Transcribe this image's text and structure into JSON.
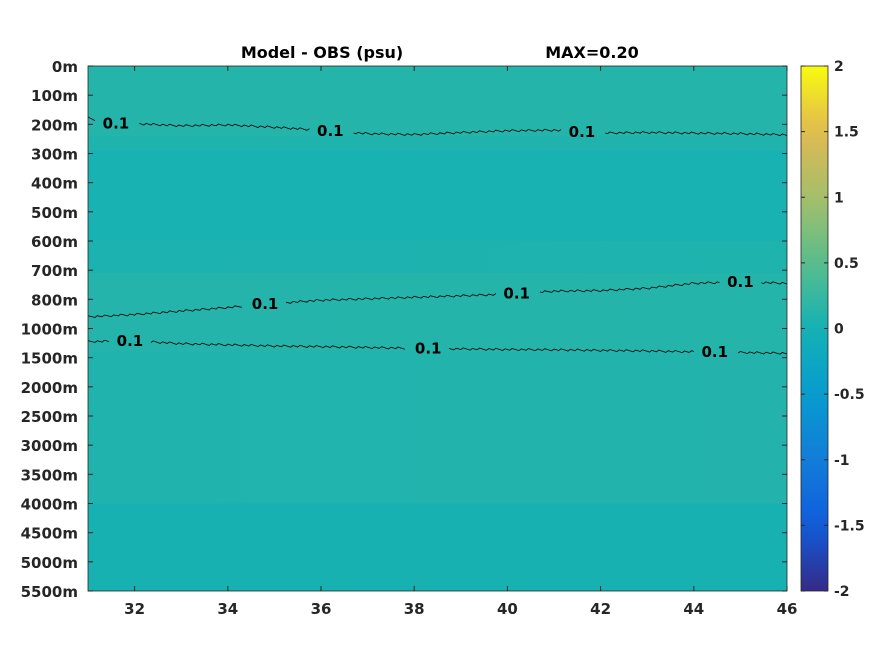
{
  "chart_data": {
    "type": "heatmap",
    "title_left": "Model - OBS (psu)",
    "title_right": "MAX=0.20",
    "x": {
      "range": [
        31,
        46
      ],
      "ticks": [
        32,
        34,
        36,
        38,
        40,
        42,
        44,
        46
      ],
      "tick_labels": [
        "32",
        "34",
        "36",
        "38",
        "40",
        "42",
        "44",
        "46"
      ]
    },
    "y": {
      "scale": "categorical-depth",
      "tick_labels": [
        "0m",
        "100m",
        "200m",
        "300m",
        "400m",
        "500m",
        "600m",
        "700m",
        "800m",
        "1000m",
        "1500m",
        "2000m",
        "2500m",
        "3000m",
        "3500m",
        "4000m",
        "4500m",
        "5000m",
        "5500m"
      ]
    },
    "colorbar": {
      "range": [
        -2,
        2
      ],
      "tick_labels": [
        "2",
        "1.5",
        "1",
        "0.5",
        "0",
        "-0.5",
        "-1",
        "-1.5",
        "-2"
      ],
      "colormap": "parula"
    },
    "bands": [
      {
        "from_level": 0,
        "to_level": 2.4,
        "value_left": 0.12,
        "value_right": 0.12
      },
      {
        "from_level": 2.4,
        "to_level": 2.9,
        "value_left": 0.07,
        "value_right": 0.08
      },
      {
        "from_level": 2.9,
        "to_level": 6.0,
        "value_left": 0.03,
        "value_right": 0.03
      },
      {
        "from_level": 6.0,
        "to_level": 7.1,
        "value_left": 0.05,
        "value_right": 0.07
      },
      {
        "from_level": 7.1,
        "to_level": 9.8,
        "value_left": 0.11,
        "value_right": 0.12
      },
      {
        "from_level": 9.8,
        "to_level": 15.0,
        "value_left": 0.08,
        "value_right": 0.1
      },
      {
        "from_level": 15.0,
        "to_level": 18.0,
        "value_left": 0.02,
        "value_right": 0.02
      }
    ],
    "contours": [
      {
        "level": 0.1,
        "points": [
          [
            31.0,
            1.78
          ],
          [
            31.5,
            1.98
          ],
          [
            32.0,
            1.97
          ],
          [
            33.0,
            2.05
          ],
          [
            34.0,
            2.02
          ],
          [
            35.0,
            2.1
          ],
          [
            36.0,
            2.2
          ],
          [
            37.0,
            2.32
          ],
          [
            38.0,
            2.35
          ],
          [
            39.0,
            2.28
          ],
          [
            40.0,
            2.22
          ],
          [
            41.0,
            2.2
          ],
          [
            42.0,
            2.3
          ],
          [
            43.0,
            2.28
          ],
          [
            44.0,
            2.3
          ],
          [
            45.0,
            2.32
          ],
          [
            46.0,
            2.36
          ]
        ],
        "labels": [
          {
            "x": 31.6,
            "text": "0.1"
          },
          {
            "x": 36.2,
            "text": "0.1"
          },
          {
            "x": 41.6,
            "text": "0.1"
          }
        ]
      },
      {
        "level": 0.1,
        "points": [
          [
            31.0,
            8.6
          ],
          [
            32.0,
            8.52
          ],
          [
            33.0,
            8.4
          ],
          [
            34.0,
            8.28
          ],
          [
            35.0,
            8.14
          ],
          [
            36.0,
            8.03
          ],
          [
            37.0,
            7.98
          ],
          [
            38.0,
            7.93
          ],
          [
            39.0,
            7.88
          ],
          [
            40.0,
            7.82
          ],
          [
            41.0,
            7.72
          ],
          [
            42.0,
            7.7
          ],
          [
            43.0,
            7.62
          ],
          [
            44.0,
            7.45
          ],
          [
            45.0,
            7.4
          ],
          [
            46.0,
            7.45
          ]
        ],
        "labels": [
          {
            "x": 34.8,
            "text": "0.1"
          },
          {
            "x": 40.2,
            "text": "0.1"
          },
          {
            "x": 45.0,
            "text": "0.1"
          }
        ]
      },
      {
        "level": 0.1,
        "points": [
          [
            31.0,
            9.45
          ],
          [
            32.0,
            9.42
          ],
          [
            33.0,
            9.52
          ],
          [
            34.0,
            9.56
          ],
          [
            35.0,
            9.6
          ],
          [
            36.0,
            9.62
          ],
          [
            37.0,
            9.65
          ],
          [
            38.0,
            9.68
          ],
          [
            39.0,
            9.7
          ],
          [
            40.0,
            9.72
          ],
          [
            41.0,
            9.73
          ],
          [
            42.0,
            9.75
          ],
          [
            43.0,
            9.77
          ],
          [
            44.0,
            9.8
          ],
          [
            45.0,
            9.82
          ],
          [
            46.0,
            9.85
          ]
        ],
        "labels": [
          {
            "x": 31.9,
            "text": "0.1"
          },
          {
            "x": 38.3,
            "text": "0.1"
          },
          {
            "x": 44.45,
            "text": "0.1"
          }
        ]
      }
    ]
  }
}
